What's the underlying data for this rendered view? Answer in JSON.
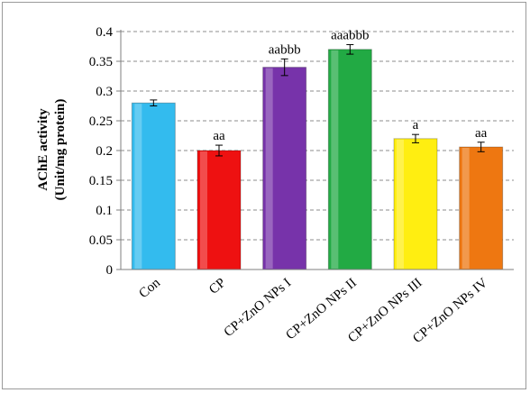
{
  "chart_data": {
    "type": "bar",
    "categories": [
      "Con",
      "CP",
      "CP+ZnO NPs I",
      "CP+ZnO NPs II",
      "CP+ZnO NPs III",
      "CP+ZnO NPs IV"
    ],
    "values": [
      0.28,
      0.2,
      0.34,
      0.37,
      0.22,
      0.206
    ],
    "errors": [
      0.005,
      0.009,
      0.014,
      0.008,
      0.007,
      0.008
    ],
    "data_labels": [
      "",
      "aa",
      "aabbb",
      "aaabbb",
      "a",
      "aa"
    ],
    "colors": [
      "#33bbee",
      "#ee1111",
      "#7733aa",
      "#22aa44",
      "#ffee11",
      "#ee7711"
    ],
    "ylabel_line1": "AChE activity",
    "ylabel_line2": "(Unit/mg protein)",
    "ylim": [
      0,
      0.4
    ],
    "yticks": [
      "0",
      "0.05",
      "0.1",
      "0.15",
      "0.2",
      "0.25",
      "0.3",
      "0.35",
      "0.4"
    ],
    "grid": true
  }
}
